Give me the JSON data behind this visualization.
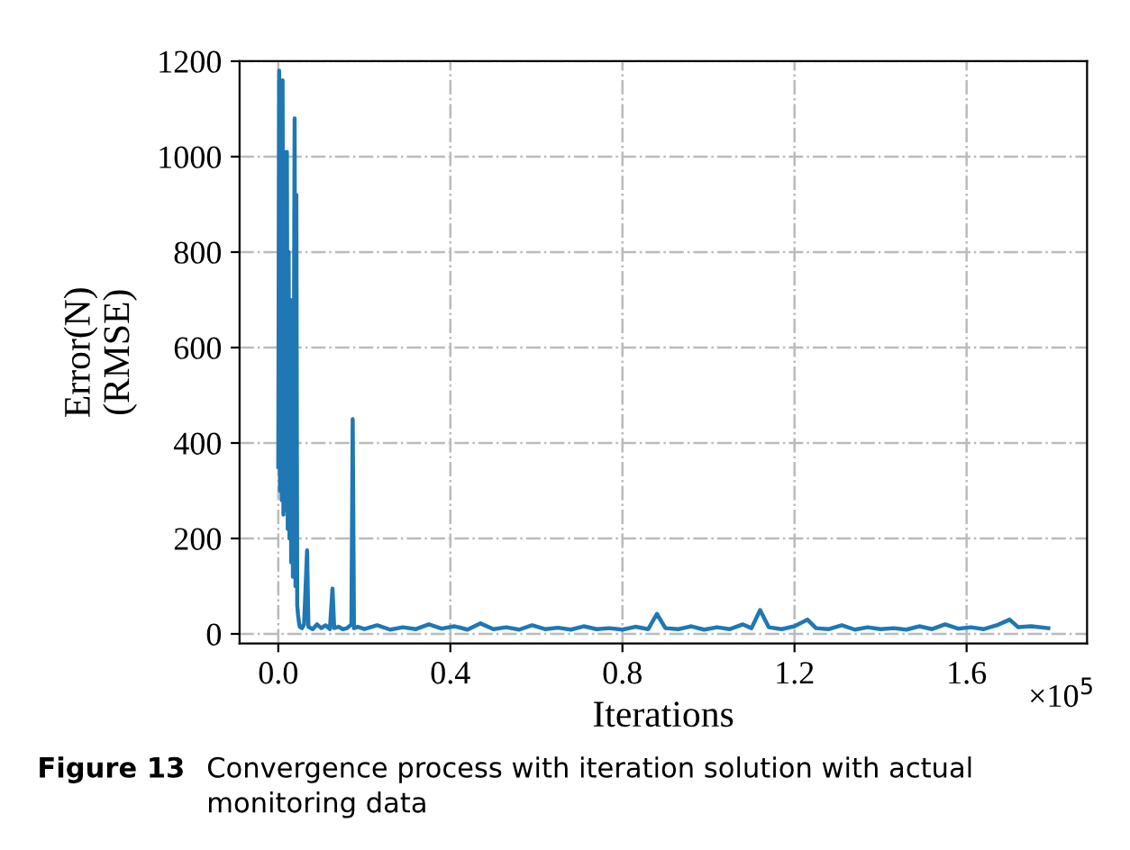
{
  "chart_data": {
    "type": "line",
    "xlabel": "Iterations",
    "ylabel": "Error(N)\n(RMSE)",
    "annotations": [
      "×10$^{5}$",
      "Figure 13",
      "Convergence process with iteration solution with actual monitoring data"
    ],
    "xlim": [
      -0.09,
      1.88
    ],
    "xticks": [
      {
        "value": 0,
        "label": "0.0"
      },
      0.4,
      0.8,
      1.2,
      1.6
    ],
    "ylim": [
      -20,
      1200
    ],
    "yticks": [
      0,
      200,
      400,
      600,
      800,
      1000,
      1200
    ],
    "grid": true,
    "marker": "none",
    "line_style": "solid",
    "series": [
      {
        "color": "#1f77b4",
        "x": [
          0,
          0.002,
          0.004,
          0.006,
          0.008,
          0.01,
          0.012,
          0.014,
          0.016,
          0.018,
          0.02,
          0.022,
          0.024,
          0.026,
          0.028,
          0.03,
          0.032,
          0.034,
          0.036,
          0.038,
          0.04,
          0.042,
          0.044,
          0.046,
          0.048,
          0.05,
          0.055,
          0.06,
          0.067,
          0.07,
          0.08,
          0.09,
          0.1,
          0.11,
          0.12,
          0.126,
          0.13,
          0.14,
          0.15,
          0.16,
          0.17,
          0.173,
          0.176,
          0.185,
          0.2,
          0.23,
          0.26,
          0.29,
          0.32,
          0.35,
          0.38,
          0.41,
          0.44,
          0.47,
          0.5,
          0.53,
          0.56,
          0.59,
          0.62,
          0.65,
          0.68,
          0.71,
          0.74,
          0.77,
          0.8,
          0.83,
          0.86,
          0.88,
          0.9,
          0.93,
          0.96,
          0.99,
          1.02,
          1.05,
          1.08,
          1.1,
          1.12,
          1.14,
          1.17,
          1.2,
          1.23,
          1.25,
          1.28,
          1.31,
          1.34,
          1.37,
          1.4,
          1.43,
          1.46,
          1.49,
          1.52,
          1.55,
          1.58,
          1.61,
          1.64,
          1.67,
          1.7,
          1.72,
          1.75,
          1.79
        ],
        "values": [
          350,
          1180,
          300,
          1150,
          280,
          1160,
          250,
          1010,
          260,
          900,
          1010,
          220,
          800,
          200,
          700,
          150,
          600,
          120,
          500,
          1080,
          100,
          920,
          60,
          40,
          25,
          15,
          12,
          20,
          175,
          15,
          10,
          20,
          12,
          18,
          10,
          95,
          12,
          15,
          10,
          12,
          20,
          450,
          12,
          15,
          10,
          18,
          9,
          14,
          10,
          20,
          11,
          16,
          9,
          22,
          10,
          14,
          9,
          18,
          10,
          13,
          9,
          16,
          10,
          12,
          9,
          15,
          10,
          42,
          12,
          10,
          16,
          9,
          14,
          10,
          20,
          12,
          50,
          14,
          10,
          16,
          30,
          12,
          10,
          18,
          9,
          14,
          10,
          12,
          9,
          16,
          10,
          20,
          11,
          14,
          10,
          18,
          30,
          14,
          16,
          12
        ]
      }
    ]
  }
}
